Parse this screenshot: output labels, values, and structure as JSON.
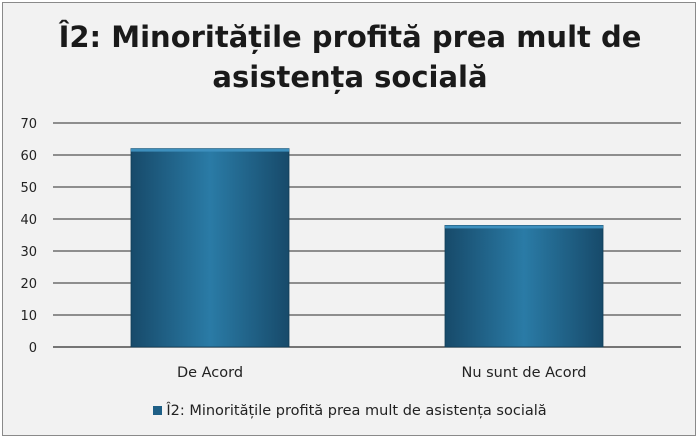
{
  "chart_data": {
    "type": "bar",
    "title": "Î2: Minoritățile profită prea mult de asistența socială",
    "categories": [
      "De Acord",
      "Nu sunt de Acord"
    ],
    "series": [
      {
        "name": "Î2: Minoritățile profită prea mult de asistența socială",
        "values": [
          62,
          38
        ]
      }
    ],
    "ylim": [
      0,
      70
    ],
    "yticks": [
      0,
      10,
      20,
      30,
      40,
      50,
      60,
      70
    ],
    "grid": true,
    "legend": "bottom",
    "colors": {
      "bar": "#1e5f86",
      "bar_light": "#2a7ba6",
      "grid": "#2b2b2b",
      "background": "#f2f2f2"
    }
  }
}
